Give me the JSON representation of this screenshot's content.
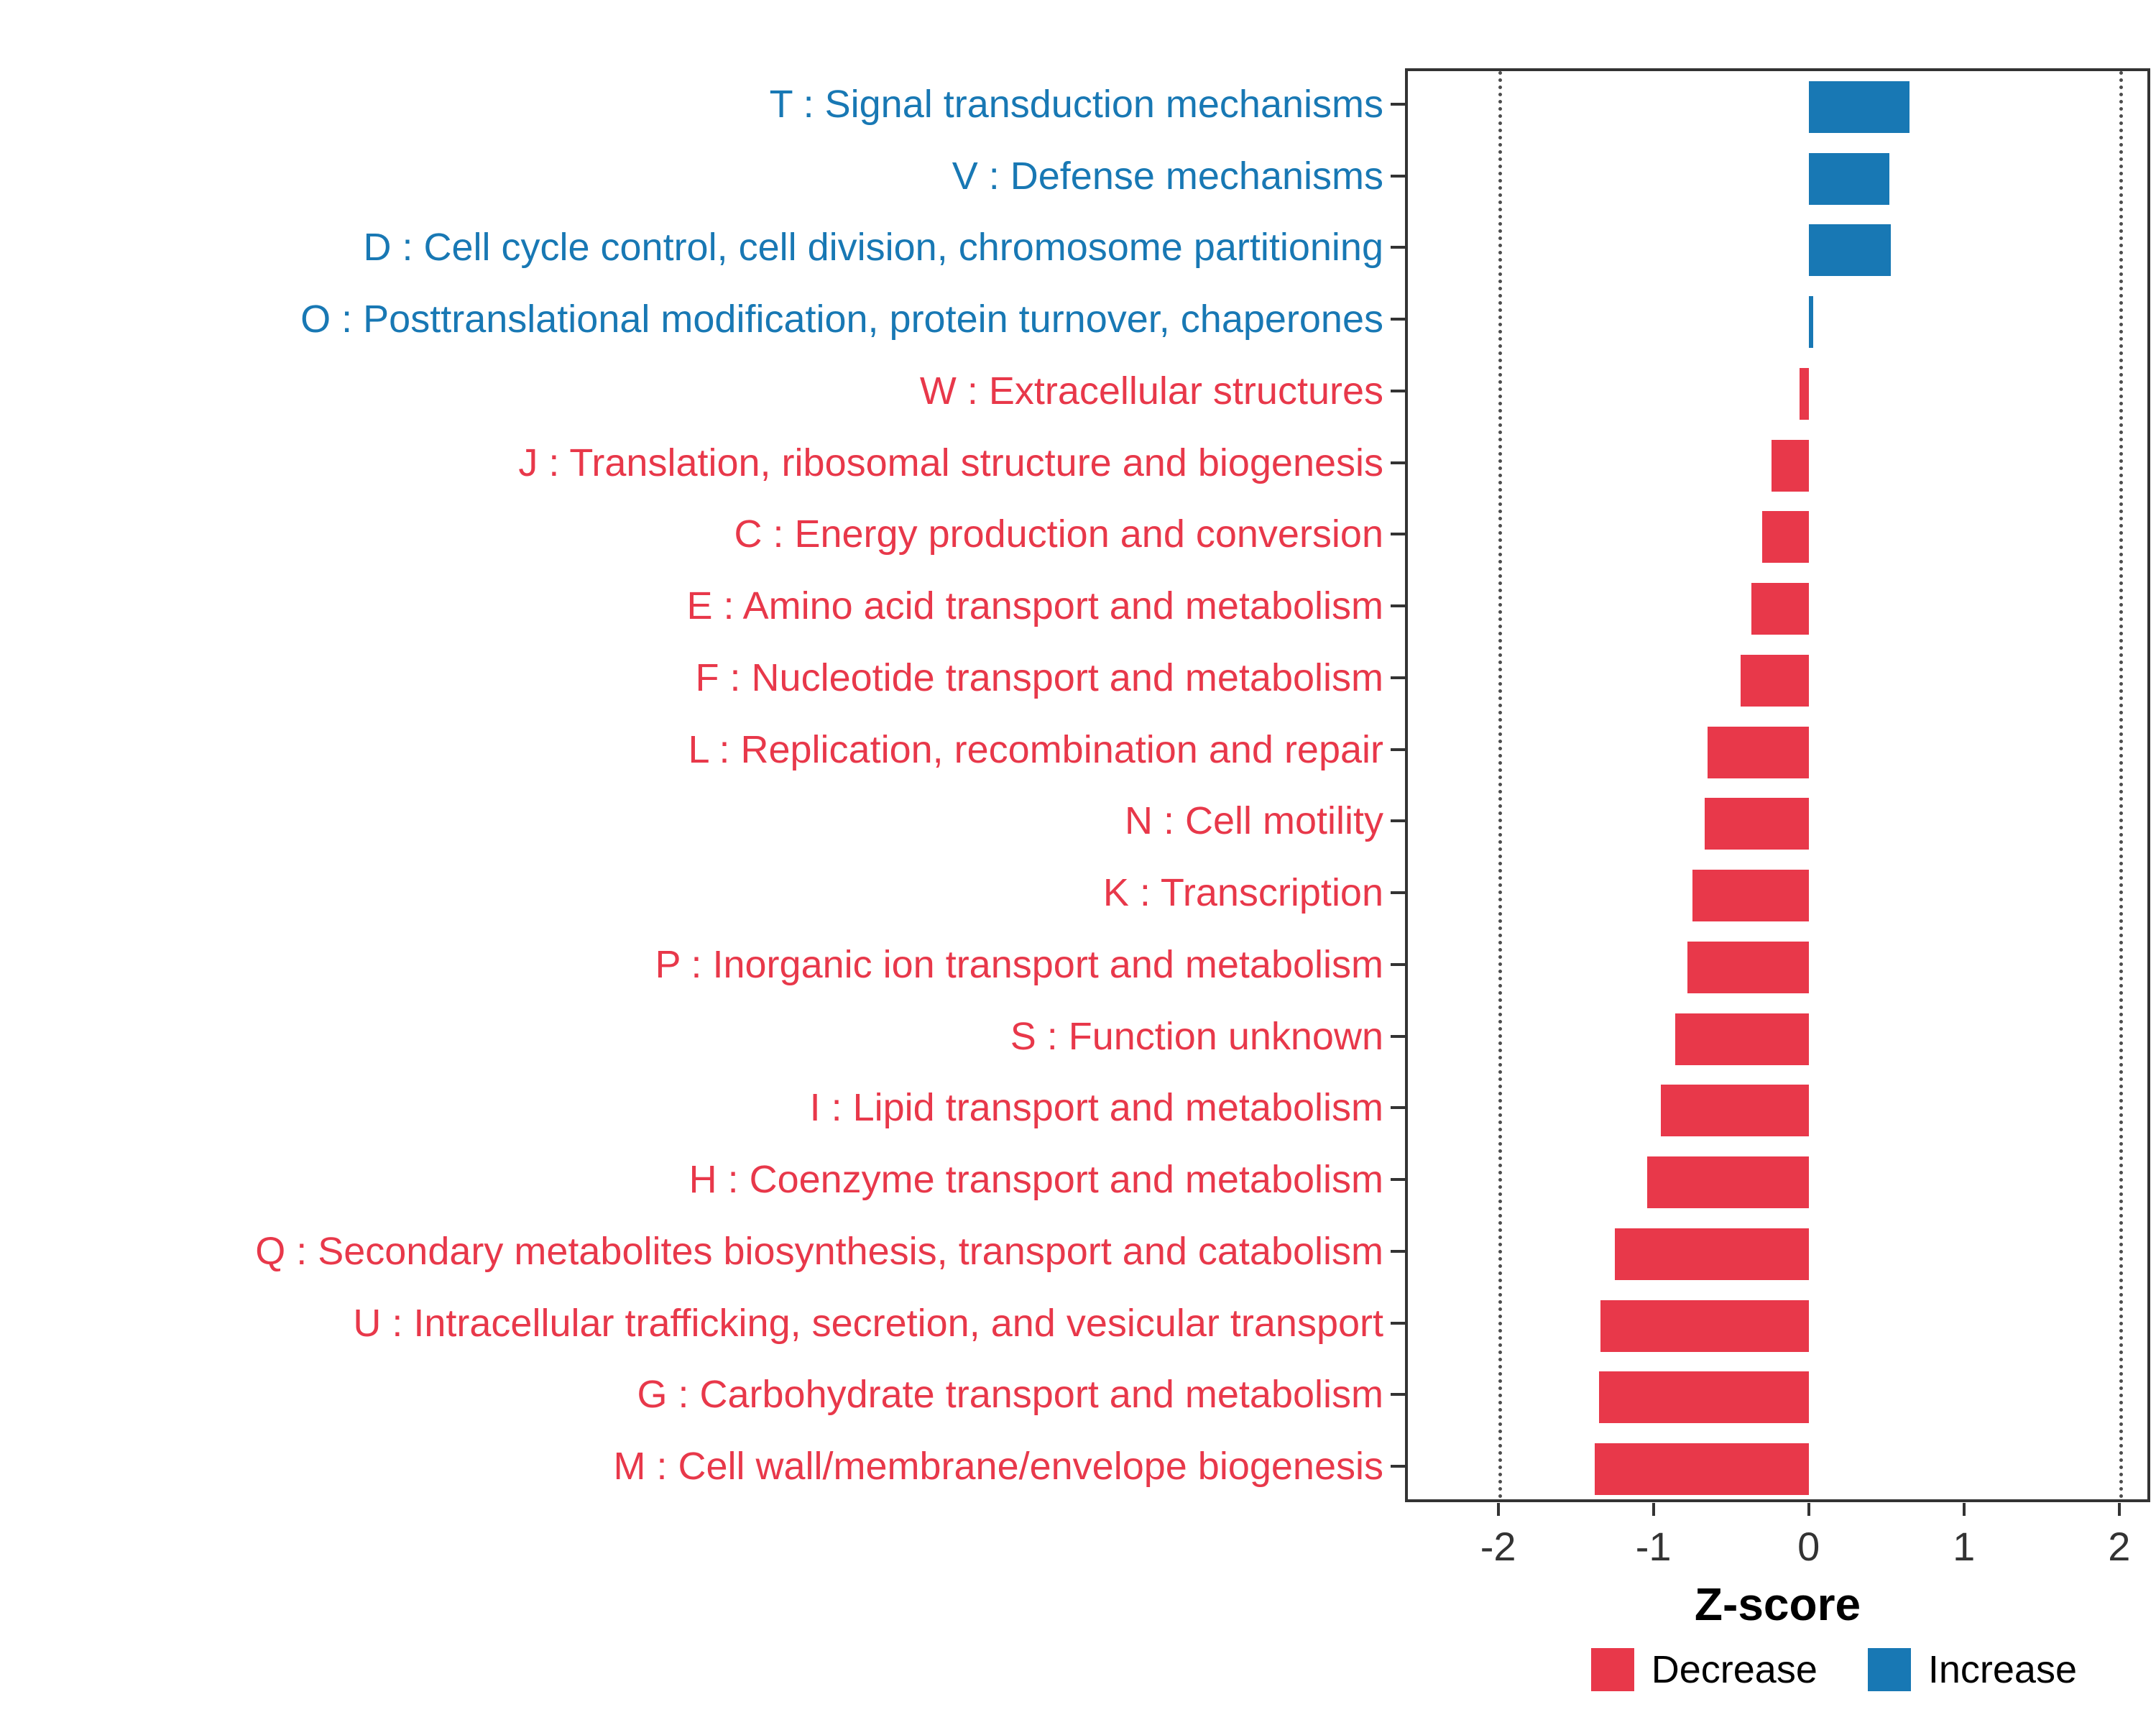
{
  "chart_data": {
    "type": "bar",
    "orientation": "horizontal",
    "title": "",
    "xlabel": "Z-score",
    "ylabel": "",
    "xlim": [
      -2.6,
      2.2
    ],
    "xticks": [
      -2,
      -1,
      0,
      1,
      2
    ],
    "gridlines_dotted_at": [
      -2,
      2
    ],
    "grid": "dotted vertical lines at -2 and 2 only",
    "legend_position": "bottom-right",
    "categories": [
      "T : Signal transduction mechanisms",
      "V : Defense mechanisms",
      "D : Cell cycle control, cell division, chromosome partitioning",
      "O : Posttranslational modification, protein turnover, chaperones",
      "W : Extracellular structures",
      "J : Translation, ribosomal structure and biogenesis",
      "C : Energy production and conversion",
      "E : Amino acid transport and metabolism",
      "F : Nucleotide transport and metabolism",
      "L : Replication, recombination and repair",
      "N : Cell motility",
      "K : Transcription",
      "P : Inorganic ion transport and metabolism",
      "S : Function unknown",
      "I : Lipid transport and metabolism",
      "H : Coenzyme transport and metabolism",
      "Q : Secondary metabolites biosynthesis, transport and catabolism",
      "U : Intracellular trafficking, secretion, and vesicular transport",
      "G : Carbohydrate transport and metabolism",
      "M : Cell wall/membrane/envelope biogenesis"
    ],
    "values": [
      0.65,
      0.52,
      0.53,
      0.03,
      -0.06,
      -0.24,
      -0.3,
      -0.37,
      -0.44,
      -0.65,
      -0.67,
      -0.75,
      -0.78,
      -0.86,
      -0.95,
      -1.04,
      -1.25,
      -1.34,
      -1.35,
      -1.38
    ],
    "groups": [
      "Increase",
      "Increase",
      "Increase",
      "Increase",
      "Decrease",
      "Decrease",
      "Decrease",
      "Decrease",
      "Decrease",
      "Decrease",
      "Decrease",
      "Decrease",
      "Decrease",
      "Decrease",
      "Decrease",
      "Decrease",
      "Decrease",
      "Decrease",
      "Decrease",
      "Decrease"
    ],
    "colors": {
      "Decrease": "#E8384A",
      "Increase": "#1878B4"
    },
    "legend": {
      "entries": [
        {
          "label": "Decrease",
          "color": "#E8384A"
        },
        {
          "label": "Increase",
          "color": "#1878B4"
        }
      ]
    }
  }
}
